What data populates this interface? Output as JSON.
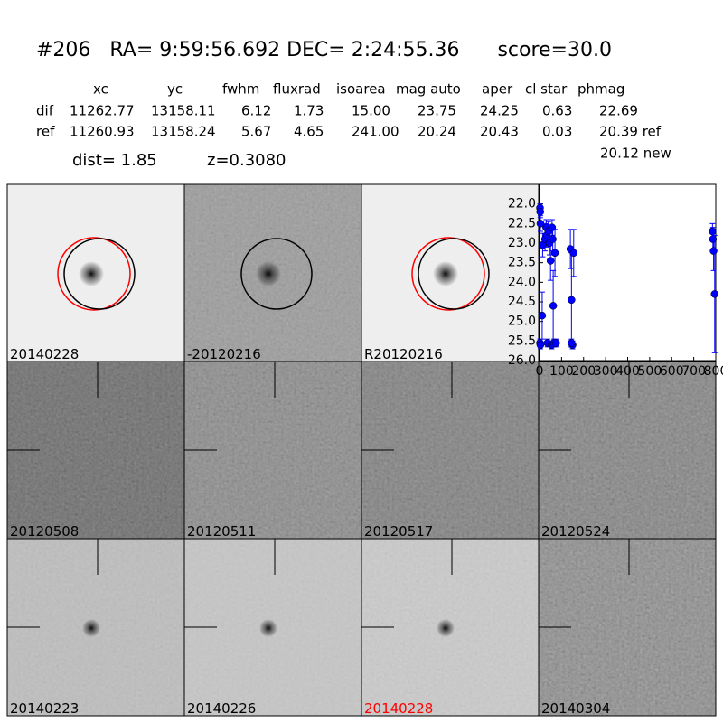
{
  "header": {
    "title": "#206   RA= 9:59:56.692 DEC= 2:24:55.36      score=30.0",
    "columns": [
      "xc",
      "yc",
      "fwhm",
      "fluxrad",
      "isoarea",
      "mag auto",
      "aper",
      "cl star",
      "phmag"
    ],
    "rows": [
      {
        "label": "dif",
        "cells": [
          "11262.77",
          "13158.11",
          "6.12",
          "1.73",
          "15.00",
          "23.75",
          "24.25",
          "0.63",
          "22.69"
        ]
      },
      {
        "label": "ref",
        "cells": [
          "11260.93",
          "13158.24",
          "5.67",
          "4.65",
          "241.00",
          "20.24",
          "20.43",
          "0.03",
          "20.39 ref"
        ]
      }
    ],
    "extra": "20.12 new",
    "dist": "dist=  1.85",
    "z": "z=0.3080"
  },
  "panels": [
    {
      "label": "20140228"
    },
    {
      "label": "-20120216"
    },
    {
      "label": "R20120216"
    },
    {
      "label": "20120508"
    },
    {
      "label": "20120511"
    },
    {
      "label": "20120517"
    },
    {
      "label": "20120524"
    },
    {
      "label": "20140223"
    },
    {
      "label": "20140226"
    },
    {
      "label": "20140228",
      "color": "#ff0000"
    },
    {
      "label": "20140304"
    }
  ],
  "chart_data": {
    "type": "scatter",
    "color": "#0000ff",
    "y_inverted": true,
    "xlim": [
      0,
      800
    ],
    "xticks": [
      0,
      100,
      200,
      300,
      400,
      500,
      600,
      700,
      800
    ],
    "ylim": [
      21.5,
      26
    ],
    "yticks": [
      {
        "value": 22,
        "label": "22.0"
      },
      {
        "value": 22.5,
        "label": "22.5"
      },
      {
        "value": 23,
        "label": "23.0"
      },
      {
        "value": 23.5,
        "label": "23.5"
      },
      {
        "value": 24,
        "label": "24.0"
      },
      {
        "value": 24.5,
        "label": "24.5"
      },
      {
        "value": 25,
        "label": "25.0"
      },
      {
        "value": 25.5,
        "label": "25.5"
      },
      {
        "value": 26,
        "label": "26.0"
      }
    ],
    "x": [
      2,
      3,
      4,
      2,
      4,
      12,
      14,
      25,
      30,
      33,
      36,
      40,
      45,
      50,
      55,
      57,
      60,
      62,
      65,
      70,
      75,
      140,
      145,
      150,
      155,
      145,
      785,
      787,
      790,
      795
    ],
    "values": [
      22.1,
      22.2,
      22.5,
      25.55,
      25.6,
      24.85,
      23.05,
      22.9,
      22.6,
      22.8,
      25.55,
      22.7,
      23.0,
      23.45,
      25.6,
      22.6,
      22.9,
      24.6,
      25.55,
      23.25,
      25.55,
      23.15,
      24.45,
      25.6,
      23.25,
      25.55,
      22.7,
      22.9,
      23.2,
      24.3
    ],
    "errors": [
      0.1,
      0.15,
      0.2,
      0.1,
      0.1,
      0.6,
      0.3,
      0.3,
      0.2,
      0.3,
      0.1,
      0.25,
      0.3,
      0.5,
      0.1,
      0.2,
      0.3,
      0.9,
      0.1,
      0.6,
      0.1,
      0.5,
      1.2,
      0.1,
      0.6,
      0.1,
      0.2,
      0.3,
      0.5,
      1.5
    ]
  }
}
